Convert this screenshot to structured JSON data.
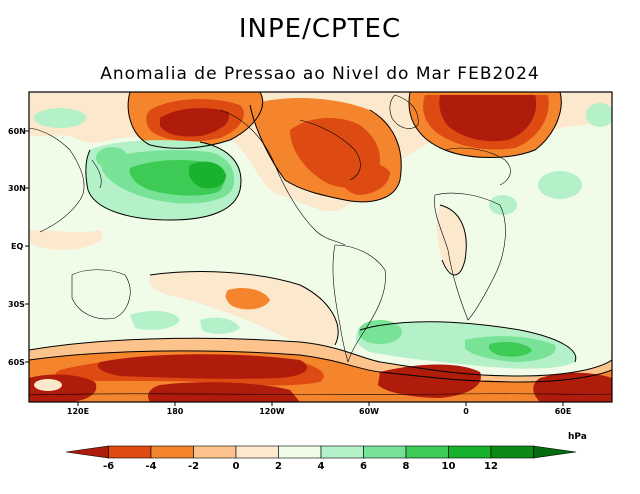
{
  "header": {
    "organization": "INPE/CPTEC",
    "subtitle": "Anomalia de Pressao ao Nivel do Mar FEB2024"
  },
  "axes": {
    "lat_labels": [
      "60N",
      "30N",
      "EQ",
      "30S",
      "60S"
    ],
    "lon_labels": [
      "120E",
      "180",
      "120W",
      "60W",
      "0",
      "60E"
    ]
  },
  "legend": {
    "unit": "hPa",
    "ticks": [
      "-6",
      "-4",
      "-2",
      "0",
      "2",
      "4",
      "6",
      "8",
      "10",
      "12"
    ],
    "colors": [
      "#b01c0c",
      "#dd4a12",
      "#f4852d",
      "#fcc38d",
      "#fce8cc",
      "#f0fbe8",
      "#b4f1c8",
      "#78e296",
      "#3ecb55",
      "#18b22c",
      "#0c8a18",
      "#056b0d"
    ]
  },
  "palette": {
    "land_outline": "#000000",
    "contour": "#000000",
    "border": "#000000"
  },
  "features": [
    "north-pacific-low",
    "north-atlantic-low",
    "north-atlantic-high",
    "north-pacific-high",
    "southern-ocean-low-belt",
    "south-atlantic-high",
    "south-indian-high"
  ]
}
